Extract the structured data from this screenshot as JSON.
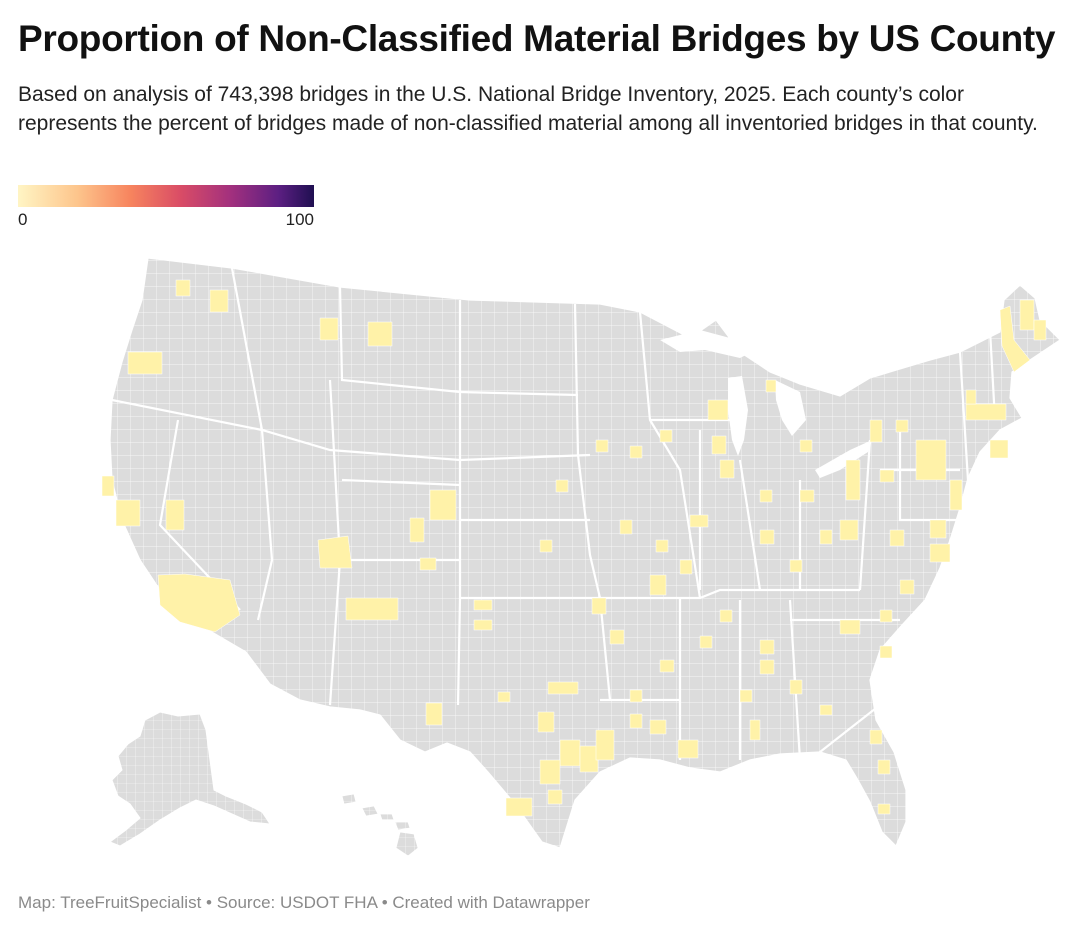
{
  "header": {
    "title": "Proportion of Non-Classified Material Bridges by US County",
    "subtitle": "Based on analysis of 743,398 bridges in the U.S. National Bridge Inventory, 2025. Each county’s color represents the percent of bridges made of non-classified material among all inventoried bridges in that county."
  },
  "legend": {
    "min_label": "0",
    "max_label": "100",
    "colors": [
      "#fff5c4",
      "#fdc58c",
      "#f7845e",
      "#d94c66",
      "#a2307e",
      "#5c1f82",
      "#1f0f51"
    ]
  },
  "map": {
    "base_color": "#dcdcdc",
    "highlight_color": "#fff2a8"
  },
  "footer": {
    "credit": "Map: TreeFruitSpecialist • Source: USDOT FHA • Created with Datawrapper"
  }
}
